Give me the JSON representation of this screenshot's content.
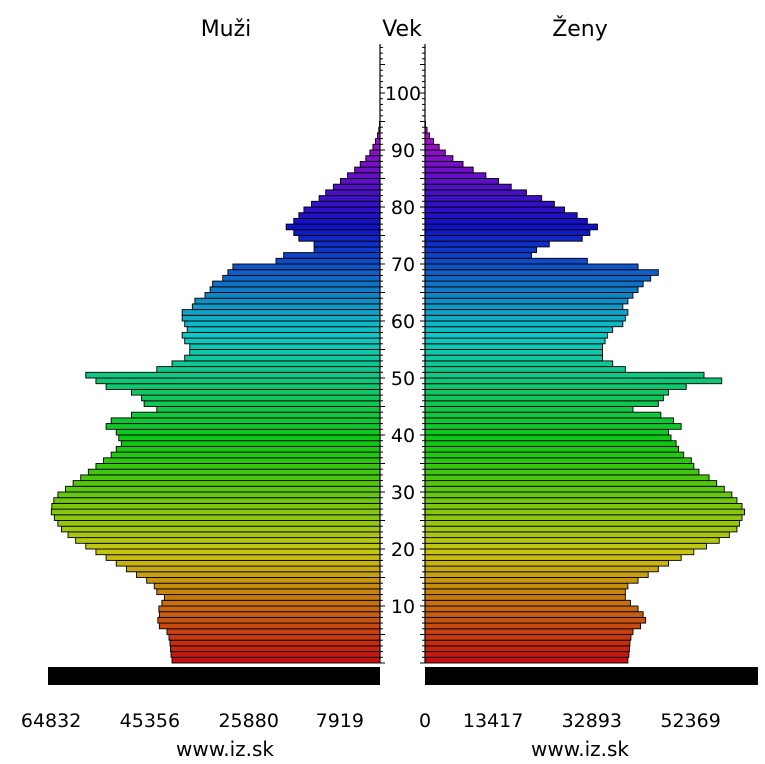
{
  "chart_data": {
    "type": "bar",
    "orientation": "horizontal-population-pyramid",
    "header": {
      "left": "Muži",
      "center": "Vek",
      "right": "Ženy"
    },
    "credit": {
      "left": "www.iz.sk",
      "right": "www.iz.sk"
    },
    "age_axis": {
      "min": 0,
      "max": 110,
      "labels": [
        "10",
        "20",
        "30",
        "40",
        "50",
        "60",
        "70",
        "80",
        "90",
        "100"
      ]
    },
    "males_axis": {
      "tick_labels": [
        "64832",
        "45356",
        "25880",
        "7919"
      ],
      "range": [
        0,
        69000
      ]
    },
    "females_axis": {
      "tick_labels": [
        "0",
        "13417",
        "32893",
        "52369"
      ],
      "range": [
        0,
        69000
      ]
    },
    "series": [
      {
        "name": "Muži",
        "note": "count per single year of age, index = age 0..94",
        "values": [
          41000,
          41200,
          41300,
          41400,
          41600,
          42000,
          43500,
          43800,
          43500,
          43600,
          43000,
          42500,
          44000,
          44500,
          46000,
          48000,
          50000,
          52000,
          54000,
          56000,
          58000,
          60000,
          61500,
          62800,
          63500,
          64200,
          64800,
          64700,
          64300,
          63500,
          62000,
          60500,
          59000,
          57500,
          56000,
          54500,
          53000,
          52000,
          51000,
          51500,
          52000,
          54000,
          53000,
          49000,
          44000,
          46500,
          47000,
          49000,
          54000,
          56000,
          58000,
          44000,
          41000,
          38500,
          37500,
          37500,
          38500,
          39000,
          38000,
          38500,
          39000,
          39000,
          37000,
          36500,
          34500,
          33500,
          33000,
          31000,
          30000,
          29000,
          20500,
          19000,
          13000,
          13000,
          16000,
          17000,
          18500,
          17000,
          16000,
          15000,
          13500,
          12000,
          10700,
          9200,
          7800,
          6400,
          5000,
          3900,
          2800,
          2000,
          1400,
          900,
          500,
          250,
          100
        ]
      },
      {
        "name": "Ženy",
        "note": "count per single year of age, index = age 0..94",
        "values": [
          40000,
          40200,
          40300,
          40400,
          40600,
          41000,
          42500,
          43500,
          43000,
          42000,
          40500,
          39500,
          39500,
          40000,
          42000,
          44000,
          46000,
          48000,
          50500,
          53000,
          55500,
          58000,
          60000,
          61500,
          62000,
          62500,
          63000,
          62500,
          61500,
          60500,
          59000,
          57500,
          56000,
          54000,
          53000,
          52500,
          51000,
          50000,
          49500,
          48500,
          48000,
          50500,
          49000,
          46500,
          41000,
          46000,
          47000,
          48000,
          51500,
          58500,
          55000,
          39500,
          37000,
          35000,
          35000,
          35000,
          35500,
          36000,
          37000,
          39000,
          39500,
          40000,
          39000,
          40000,
          41000,
          42000,
          43000,
          44500,
          46000,
          42000,
          32000,
          21000,
          22000,
          24500,
          31000,
          32500,
          34000,
          32000,
          30000,
          27500,
          25500,
          23000,
          20000,
          17000,
          14500,
          12000,
          9500,
          7500,
          5500,
          4000,
          2800,
          1700,
          900,
          400,
          100
        ]
      }
    ],
    "base_bar_color": "#000000",
    "color_scale": "age gradient red (0) → orange → yellow-green → green (40) → teal (50) → cyan (60) → blue (70) → violet (85) → magenta (95)"
  }
}
